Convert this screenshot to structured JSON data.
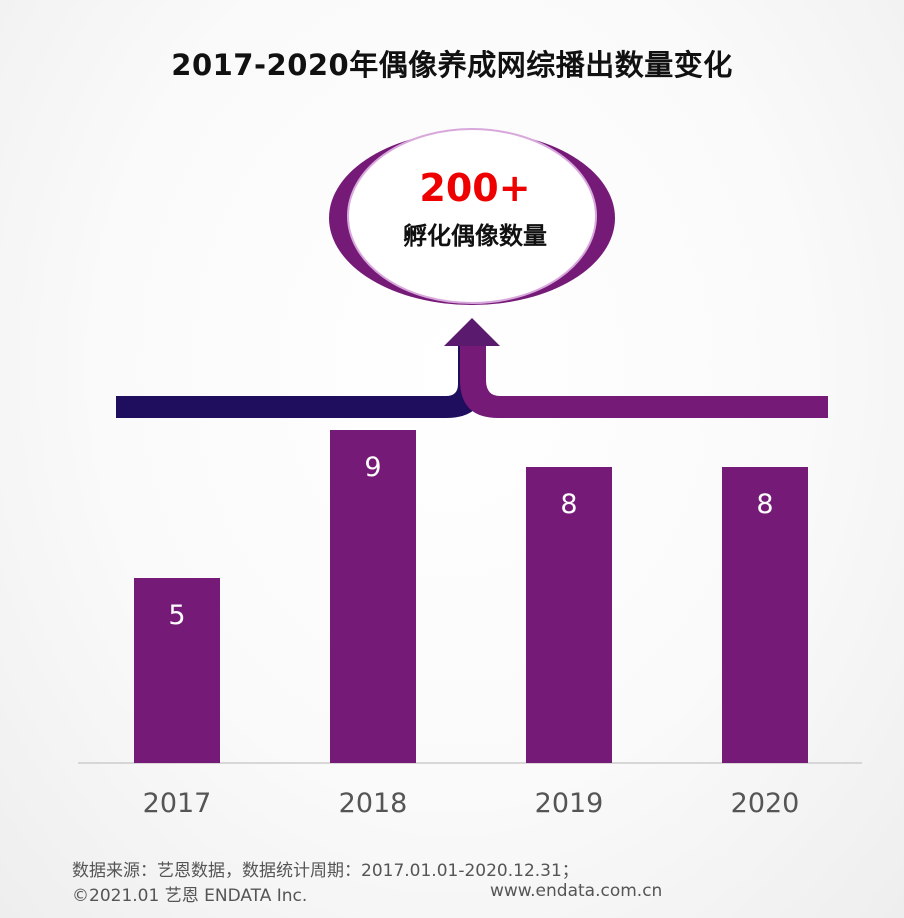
{
  "chart_data": {
    "type": "bar",
    "title": "2017-2020年偶像养成网综播出数量变化",
    "categories": [
      "2017",
      "2018",
      "2019",
      "2020"
    ],
    "values": [
      5,
      9,
      8,
      8
    ],
    "ylim": [
      0,
      10
    ],
    "grid": false,
    "bar_color": "#761a78",
    "label_color": "#ffffff"
  },
  "callout": {
    "value": "200+",
    "label": "孵化偶像数量",
    "value_color": "#ee0000",
    "accent_dark": "#1f0e5e",
    "accent_purple": "#761a78"
  },
  "footer": {
    "source": "数据来源：艺恩数据，数据统计周期：2017.01.01-2020.12.31；",
    "copyright": "©2021.01 艺恩 ENDATA Inc.",
    "website": "www.endata.com.cn"
  }
}
